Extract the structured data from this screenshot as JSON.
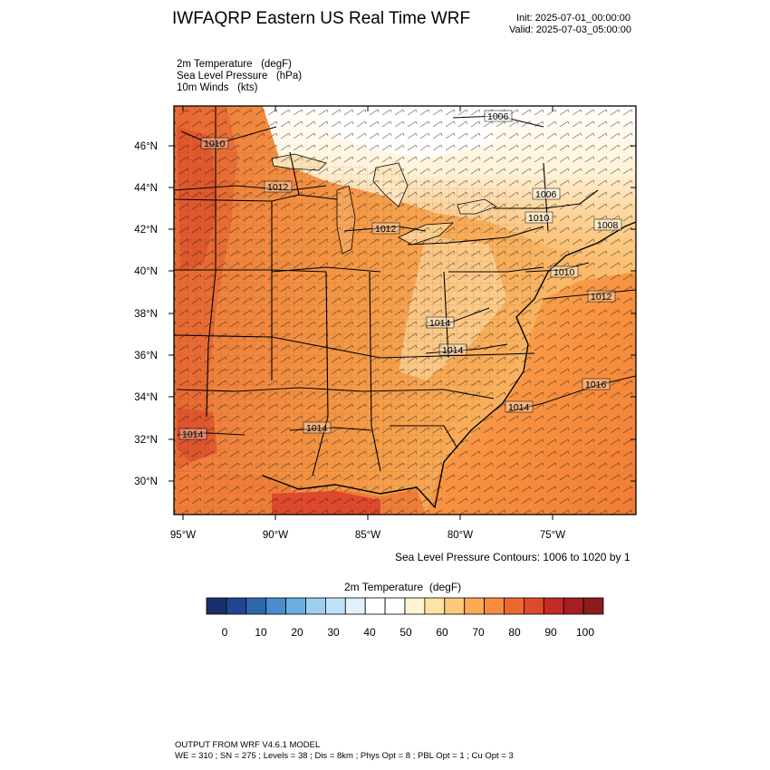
{
  "header": {
    "title": "IWFAQRP Eastern US Real Time WRF",
    "init": "Init: 2025-07-01_00:00:00",
    "valid": "Valid: 2025-07-03_05:00:00"
  },
  "fields": [
    "2m Temperature   (degF)",
    "Sea Level Pressure   (hPa)",
    "10m Winds   (kts)"
  ],
  "map": {
    "lat_ticks": [
      "46°N",
      "44°N",
      "42°N",
      "40°N",
      "38°N",
      "36°N",
      "34°N",
      "32°N",
      "30°N"
    ],
    "lon_ticks": [
      "95°W",
      "90°W",
      "85°W",
      "80°W",
      "75°W"
    ],
    "pressure_labels": [
      "1006",
      "1010",
      "1012",
      "1012",
      "1006",
      "1010",
      "1008",
      "1010",
      "1012",
      "1014",
      "1014",
      "1014",
      "1016",
      "1014",
      "1014"
    ],
    "contour_note": "Sea Level Pressure Contours: 1006 to 1020 by 1"
  },
  "colorbar": {
    "title": "2m Temperature  (degF)",
    "colors": [
      "#1b2f6b",
      "#21458f",
      "#3068b0",
      "#4a8dcc",
      "#6aaee0",
      "#9ccfee",
      "#bfe2f6",
      "#e0f1fb",
      "#ffffff",
      "#fefefe",
      "#fff3d2",
      "#fee3a4",
      "#fdc878",
      "#fcaa54",
      "#f68d3e",
      "#ec6a32",
      "#dc4a2b",
      "#c52b26",
      "#a51e22",
      "#8a1c1f"
    ],
    "tick_labels": [
      "0",
      "10",
      "20",
      "30",
      "40",
      "50",
      "60",
      "70",
      "80",
      "90",
      "100"
    ]
  },
  "footer": {
    "line1": "OUTPUT FROM WRF V4.6.1 MODEL",
    "line2": "WE = 310 ; SN = 275 ; Levels = 38 ; Dis = 8km ; Phys Opt = 8 ; PBL Opt = 1 ; Cu Opt = 3"
  }
}
